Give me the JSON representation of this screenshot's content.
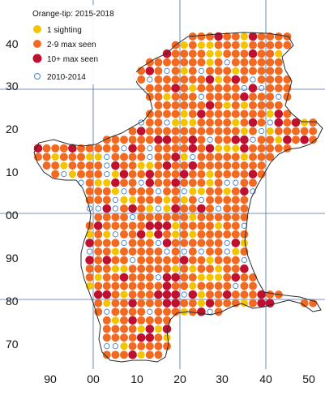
{
  "legend": {
    "title": "Orange-tip:  2015-2018",
    "items": [
      {
        "label": "1 sighting",
        "color": "#f5c400",
        "style": "filled"
      },
      {
        "label": "2-9 max seen",
        "color": "#f26a22",
        "style": "filled"
      },
      {
        "label": "10+ max seen",
        "color": "#c0102f",
        "style": "filled"
      },
      {
        "label": "2010-2014",
        "color": "#3f7fd0",
        "style": "hollow"
      }
    ]
  },
  "axes": {
    "x_ticks": [
      "90",
      "00",
      "10",
      "20",
      "30",
      "40",
      "50"
    ],
    "y_ticks": [
      "40",
      "30",
      "20",
      "10",
      "00",
      "90",
      "80",
      "70"
    ]
  },
  "colors": {
    "gridline": "#4a6ea6",
    "outline": "#2a2a2a",
    "label": "#111111"
  },
  "map_region": "tetrad grid of sightings (Orange-tip distribution)"
}
